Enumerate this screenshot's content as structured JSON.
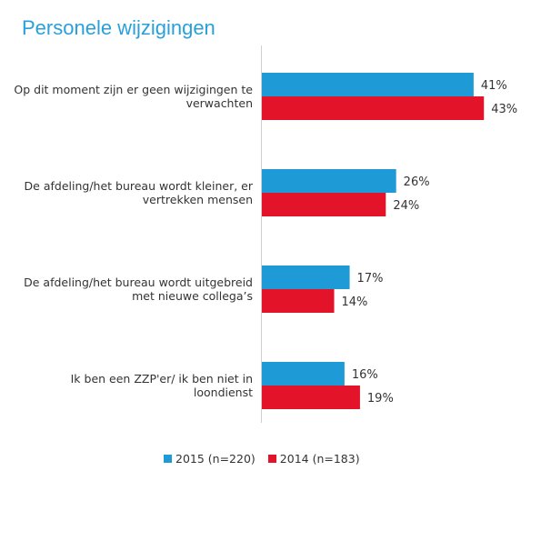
{
  "title": "Personele wijzigingen",
  "chart_data": {
    "type": "bar",
    "orientation": "horizontal",
    "title": "Personele wijzigingen",
    "categories": [
      "Op dit moment zijn er geen wijzigingen te verwachten",
      "De afdeling/het bureau wordt kleiner, er vertrekken mensen",
      "De afdeling/het bureau wordt uitgebreid met nieuwe collega’s",
      "Ik ben een ZZP'er/ ik ben niet in loondienst"
    ],
    "series": [
      {
        "name": "2015 (n=220)",
        "color": "#1e9ad6",
        "values": [
          41,
          26,
          17,
          16
        ],
        "labels": [
          "41%",
          "26%",
          "17%",
          "16%"
        ]
      },
      {
        "name": "2014 (n=183)",
        "color": "#e3132a",
        "values": [
          43,
          24,
          14,
          19
        ],
        "labels": [
          "43%",
          "24%",
          "14%",
          "19%"
        ]
      }
    ],
    "xlim": [
      0,
      60
    ],
    "grid": false,
    "legend_position": "bottom"
  }
}
